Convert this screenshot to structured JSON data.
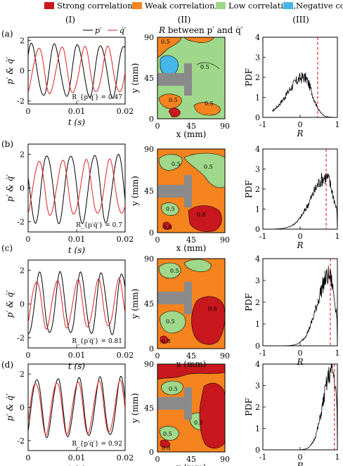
{
  "legend": {
    "items": [
      {
        "label": "Strong correlation,",
        "color": "#c8171d"
      },
      {
        "label": "Weak correlation,",
        "color": "#f5841f"
      },
      {
        "label": "Low correlation,",
        "color": "#9fd88a"
      },
      {
        "label": "Negative correlation",
        "color": "#45b5ea"
      }
    ]
  },
  "column_headers": [
    "(I)",
    "(II)",
    "(III)"
  ],
  "row_labels": [
    "(a)",
    "(b)",
    "(c)",
    "(d)"
  ],
  "signal_legend": {
    "p": "p′",
    "q": "q̇′"
  },
  "map_title_prefix": "R",
  "map_title_rest": " between p′ and q̇′",
  "chart_data": [
    {
      "type": "line",
      "panel": "I",
      "xlabel": "t (s)",
      "ylabel": "p′ & q̇′",
      "xlim": [
        0,
        0.02
      ],
      "xticks": [
        0,
        0.01,
        0.02
      ],
      "yticks": [
        -2,
        0,
        2
      ],
      "series": [
        {
          "name": "p′",
          "color": "#000000"
        },
        {
          "name": "q̇′",
          "color": "#e02020"
        }
      ],
      "rows": [
        {
          "ylim": [
            -2.2,
            2.2
          ],
          "amp_p": 1.7,
          "amp_q": 1.5,
          "freq": 210,
          "phase_p": 0.9,
          "phase_q": 0.2,
          "annotation": "R_{p′q̇′} = 0.47",
          "R": 0.47
        },
        {
          "ylim": [
            -2.6,
            2.6
          ],
          "amp_p": 2.0,
          "amp_q": 1.6,
          "freq": 205,
          "phase_p": 0.55,
          "phase_q": 0.2,
          "annotation": "R_{p′q̇′} = 0.7",
          "R": 0.7
        },
        {
          "ylim": [
            -2.6,
            2.6
          ],
          "amp_p": 1.8,
          "amp_q": 1.4,
          "freq": 235,
          "phase_p": 0.3,
          "phase_q": 0.15,
          "annotation": "R_{p′q̇′} = 0.81",
          "R": 0.81
        },
        {
          "ylim": [
            -2.6,
            2.6
          ],
          "amp_p": 1.75,
          "amp_q": 1.55,
          "freq": 230,
          "phase_p": 0.15,
          "phase_q": 0.1,
          "annotation": "R_{p′q̇′} = 0.92",
          "R": 0.92
        }
      ]
    },
    {
      "type": "heatmap",
      "panel": "II",
      "xlabel": "x (mm)",
      "ylabel": "y (mm)",
      "xlim": [
        0,
        90
      ],
      "ylim": [
        0,
        90
      ],
      "xticks": [
        0,
        45,
        90
      ],
      "yticks": [
        0,
        45,
        90
      ],
      "contour_labels": [
        "0.5",
        "0.8"
      ]
    },
    {
      "type": "line",
      "panel": "III",
      "xlabel": "R",
      "ylabel": "PDF",
      "xlim": [
        -1,
        1
      ],
      "ylim": [
        0,
        4
      ],
      "xticks": [
        -1,
        0,
        1
      ],
      "yticks": [
        0,
        1,
        2,
        3,
        4
      ],
      "rows": [
        {
          "peak_x": 0.1,
          "peak_y": 2.0,
          "spread": 0.22,
          "mean_R": 0.47
        },
        {
          "peak_x": 0.7,
          "peak_y": 2.6,
          "spread": 0.2,
          "mean_R": 0.7
        },
        {
          "peak_x": 0.78,
          "peak_y": 3.2,
          "spread": 0.16,
          "mean_R": 0.81
        },
        {
          "peak_x": 0.86,
          "peak_y": 3.7,
          "spread": 0.12,
          "mean_R": 0.92
        }
      ]
    }
  ]
}
